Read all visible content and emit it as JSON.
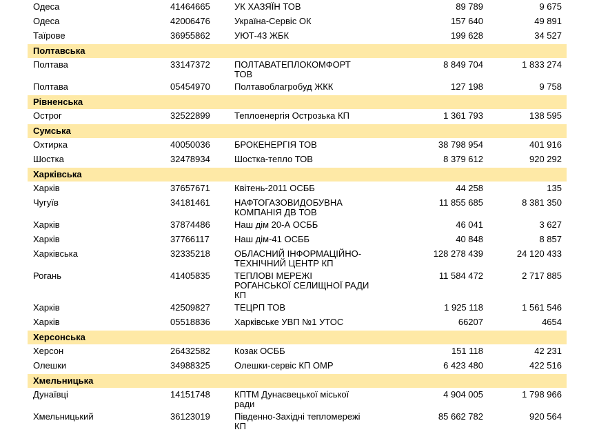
{
  "table": {
    "rows": [
      {
        "city": "Одеса",
        "code": "41464665",
        "name": "УК ХАЗЯЇН ТОВ",
        "v1": "89 789",
        "v2": "9 675"
      },
      {
        "city": "Одеса",
        "code": "42006476",
        "name": "Україна-Сервіс ОК",
        "v1": "157 640",
        "v2": "49 891"
      },
      {
        "city": "Таїрове",
        "code": "36955862",
        "name": "УЮТ-43 ЖБК",
        "v1": "199 628",
        "v2": "34 527"
      },
      {
        "region": "Полтавська"
      },
      {
        "city": "Полтава",
        "code": "33147372",
        "name": "ПОЛТАВАТЕПЛОКОМФОРТ\nТОВ",
        "v1": "8 849 704",
        "v2": "1 833 274"
      },
      {
        "city": "Полтава",
        "code": "05454970",
        "name": "Полтавоблагробуд ЖКК",
        "v1": "127 198",
        "v2": "9 758"
      },
      {
        "region": "Рівненська"
      },
      {
        "city": "Острог",
        "code": "32522899",
        "name": "Теплоенергія Острозька  КП",
        "v1": "1 361 793",
        "v2": "138 595"
      },
      {
        "region": "Сумська"
      },
      {
        "city": "Охтирка",
        "code": "40050036",
        "name": "БРОКЕНЕРГІЯ ТОВ",
        "v1": "38 798 954",
        "v2": "401 916"
      },
      {
        "city": "Шостка",
        "code": "32478934",
        "name": "Шостка-тепло ТОВ",
        "v1": "8 379 612",
        "v2": "920 292"
      },
      {
        "region": "Харківська"
      },
      {
        "city": "Харків",
        "code": "37657671",
        "name": "Квітень-2011 ОСББ",
        "v1": "44 258",
        "v2": "135"
      },
      {
        "city": "Чугуїв",
        "code": "34181461",
        "name": "НАФТОГАЗОВИДОБУВНА\nКОМПАНІЯ ДВ ТОВ",
        "v1": "11 855 685",
        "v2": "8 381 350"
      },
      {
        "city": "Харків",
        "code": "37874486",
        "name": "Наш дім 20-А ОСББ",
        "v1": "46 041",
        "v2": "3 627"
      },
      {
        "city": "Харків",
        "code": "37766117",
        "name": "Наш дім-41 ОСББ",
        "v1": "40 848",
        "v2": "8 857"
      },
      {
        "city": "Харківська",
        "code": "32335218",
        "name": "ОБЛАСНИЙ ІНФОРМАЦІЙНО-\nТЕХНІЧНИЙ ЦЕНТР КП",
        "v1": "128 278 439",
        "v2": "24 120 433"
      },
      {
        "city": "Рогань",
        "code": "41405835",
        "name": "ТЕПЛОВІ МЕРЕЖІ\nРОГАНСЬКОЇ СЕЛИЩНОЇ РАДИ\nКП",
        "v1": "11 584 472",
        "v2": "2 717 885"
      },
      {
        "city": "Харків",
        "code": "42509827",
        "name": "ТЕЦРП ТОВ",
        "v1": "1 925 118",
        "v2": "1 561 546"
      },
      {
        "city": "Харків",
        "code": "05518836",
        "name": "Харківське УВП №1 УТОС",
        "v1": "66207",
        "v2": "4654"
      },
      {
        "region": "Херсонська"
      },
      {
        "city": "Херсон",
        "code": "26432582",
        "name": "Козак ОСББ",
        "v1": "151 118",
        "v2": "42 231"
      },
      {
        "city": "Олешки",
        "code": "34988325",
        "name": "Олешки-сервіс КП ОМР",
        "v1": "6 423 480",
        "v2": "422 516"
      },
      {
        "region": "Хмельницька"
      },
      {
        "city": "Дунаївці",
        "code": "14151748",
        "name": "КПТМ Дунаєвецької міської\nради",
        "v1": "4 904 005",
        "v2": "1 798 966"
      },
      {
        "city": "Хмельницький",
        "code": "36123019",
        "name": "Південно-Західні тепломережі\nКП",
        "v1": "85 662 782",
        "v2": "920 564"
      }
    ]
  }
}
